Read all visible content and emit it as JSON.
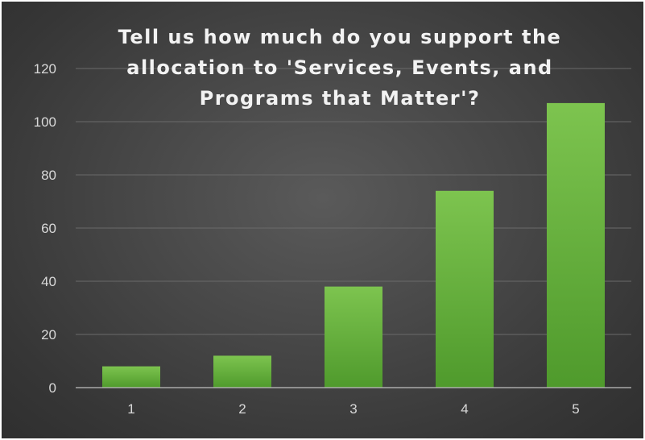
{
  "chart_data": {
    "type": "bar",
    "title_lines": [
      "Tell us how much do you support the",
      "allocation to 'Services, Events, and",
      "Programs that Matter'?"
    ],
    "xlabel": "",
    "ylabel": "",
    "categories": [
      "1",
      "2",
      "3",
      "4",
      "5"
    ],
    "values": [
      8,
      12,
      38,
      74,
      107
    ],
    "ylim": [
      0,
      120
    ],
    "yticks": [
      0,
      20,
      40,
      60,
      80,
      100,
      120
    ],
    "grid": true,
    "legend": "none",
    "colors": {
      "bar_top": "#7dc44f",
      "bar_bottom": "#4f9a2c"
    }
  }
}
